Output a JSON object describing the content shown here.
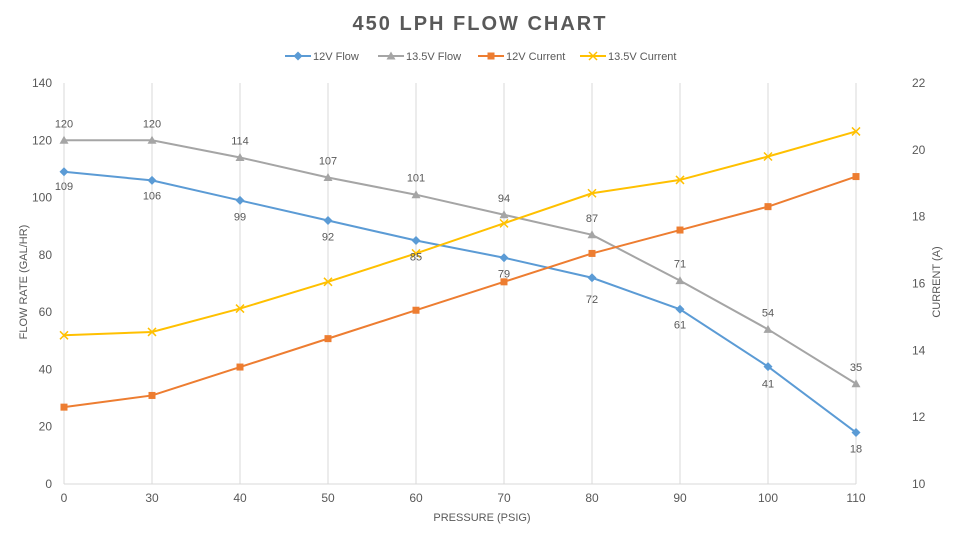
{
  "chart_data": {
    "type": "line",
    "title": "450 LPH FLOW CHART",
    "xlabel": "PRESSURE (PSIG)",
    "ylabel": "FLOW RATE (GAL/HR)",
    "y2label": "CURRENT (A)",
    "x": [
      0,
      30,
      40,
      50,
      60,
      70,
      80,
      90,
      100,
      110
    ],
    "x_tick_labels": [
      "0",
      "30",
      "40",
      "50",
      "60",
      "70",
      "80",
      "90",
      "100",
      "110"
    ],
    "ylim": [
      0,
      140
    ],
    "y_ticks": [
      0,
      20,
      40,
      60,
      80,
      100,
      120,
      140
    ],
    "y2lim": [
      10,
      22
    ],
    "y2_ticks": [
      10,
      12,
      14,
      16,
      18,
      20,
      22
    ],
    "grid": "vertical",
    "legend_position": "top",
    "series": [
      {
        "name": "12V Flow",
        "axis": "left",
        "marker": "diamond",
        "color": "#5B9BD5",
        "values": [
          109,
          106,
          99,
          92,
          85,
          79,
          72,
          61,
          41,
          18
        ],
        "labels": [
          "109",
          "106",
          "99",
          "92",
          "85",
          "79",
          "72",
          "61",
          "41",
          "18"
        ]
      },
      {
        "name": "13.5V Flow",
        "axis": "left",
        "marker": "triangle",
        "color": "#A5A5A5",
        "values": [
          120,
          120,
          114,
          107,
          101,
          94,
          87,
          71,
          54,
          35
        ],
        "labels": [
          "120",
          "120",
          "114",
          "107",
          "101",
          "94",
          "87",
          "71",
          "54",
          "35"
        ]
      },
      {
        "name": "12V Current",
        "axis": "right",
        "marker": "square",
        "color": "#ED7D31",
        "values": [
          12.3,
          12.65,
          13.5,
          14.35,
          15.2,
          16.05,
          16.9,
          17.6,
          18.3,
          19.2
        ]
      },
      {
        "name": "13.5V Current",
        "axis": "right",
        "marker": "x",
        "color": "#FFC000",
        "values": [
          14.45,
          14.55,
          15.25,
          16.05,
          16.9,
          17.8,
          18.7,
          19.1,
          19.8,
          20.55
        ]
      }
    ]
  }
}
